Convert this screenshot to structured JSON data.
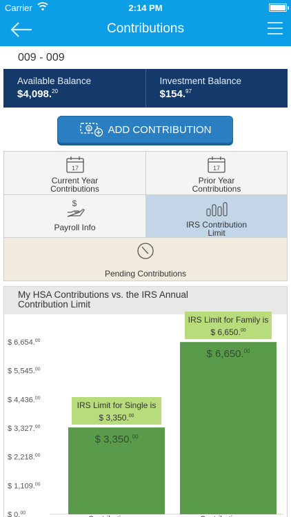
{
  "status_bar": {
    "carrier": "Carrier",
    "time": "2:14 PM"
  },
  "header": {
    "title": "Contributions"
  },
  "account": {
    "id": "009 - 009"
  },
  "balances": {
    "available": {
      "label": "Available Balance",
      "dollars": "$4,098.",
      "cents": "20"
    },
    "investment": {
      "label": "Investment Balance",
      "dollars": "$154.",
      "cents": "97"
    }
  },
  "add_button": {
    "label": "ADD CONTRIBUTION"
  },
  "tiles": {
    "current_year": {
      "line1": "Current Year",
      "line2": "Contributions",
      "date": "17"
    },
    "prior_year": {
      "line1": "Prior Year",
      "line2": "Contributions",
      "date": "17"
    },
    "payroll": {
      "label": "Payroll Info"
    },
    "irs_limit": {
      "line1": "IRS Contribution",
      "line2": "Limit"
    },
    "pending": {
      "label": "Pending Contributions"
    }
  },
  "chart_data": {
    "type": "bar",
    "title": "My HSA Contributions vs. the IRS Annual Contribution Limit",
    "title_line1": "My HSA Contributions vs. the IRS Annual",
    "title_line2": "Contribution Limit",
    "ylim": [
      0,
      6654
    ],
    "yticks": [
      {
        "value": 0,
        "dollars": "$ 0.",
        "cents": "00"
      },
      {
        "value": 1109,
        "dollars": "$ 1,109.",
        "cents": "00"
      },
      {
        "value": 2218,
        "dollars": "$ 2,218.",
        "cents": "00"
      },
      {
        "value": 3327,
        "dollars": "$ 3,327.",
        "cents": "00"
      },
      {
        "value": 4436,
        "dollars": "$ 4,436.",
        "cents": "00"
      },
      {
        "value": 5545,
        "dollars": "$ 5,545.",
        "cents": "00"
      },
      {
        "value": 6654,
        "dollars": "$ 6,654.",
        "cents": "00"
      }
    ],
    "bars": [
      {
        "category": "Contributions vs.",
        "value": 3350,
        "value_dollars": "$ 3,350.",
        "value_cents": "00",
        "annotation_line1": "IRS Limit for Single is",
        "annotation_dollars": "$ 3,350.",
        "annotation_cents": "00"
      },
      {
        "category": "Contributions vs.",
        "value": 6650,
        "value_dollars": "$ 6,650.",
        "value_cents": "00",
        "annotation_line1": "IRS Limit for Family is",
        "annotation_dollars": "$ 6,650.",
        "annotation_cents": "00"
      }
    ],
    "colors": {
      "bar": "#5a9b4b",
      "annotation": "#b8dc7c"
    },
    "grid": false
  },
  "icons": [
    "back-arrow-icon",
    "hamburger-menu-icon",
    "wifi-icon",
    "battery-icon",
    "money-plus-icon",
    "calendar-icon",
    "hand-dollar-icon",
    "bar-chart-icon",
    "clock-icon"
  ]
}
